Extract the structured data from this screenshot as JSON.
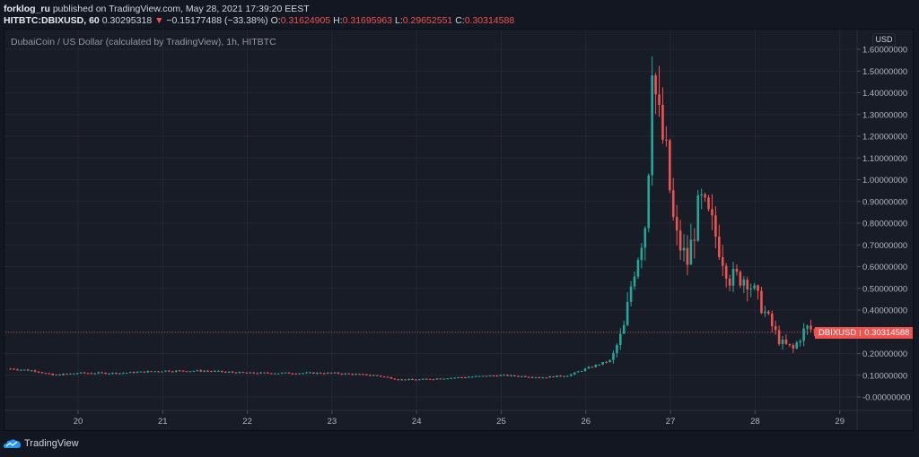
{
  "header": {
    "author": "forklog_ru",
    "published_text": " published on TradingView.com, May 28, 2021 17:39:20 EEST",
    "symbol": "HITBTC:DBIXUSD, 60",
    "last": "0.30295318",
    "change": "−0.15177488 (−33.38%)",
    "change_direction": "down",
    "ohlc": {
      "o_label": "O:",
      "o": "0.31624905",
      "h_label": "H:",
      "h": "0.31695963",
      "l_label": "L:",
      "l": "0.29652551",
      "c_label": "C:",
      "c": "0.30314588"
    }
  },
  "chart_title": "DubaiCoin / US Dollar (calculated by TradingView), 1h, HITBTC",
  "price_scale": {
    "currency": "USD",
    "labels": [
      "1.60000000",
      "1.50000000",
      "1.40000000",
      "1.30000000",
      "1.20000000",
      "1.10000000",
      "1.00000000",
      "0.90000000",
      "0.80000000",
      "0.70000000",
      "0.60000000",
      "0.50000000",
      "0.40000000",
      "0.30000000",
      "0.20000000",
      "0.10000000",
      "-0.00000000"
    ]
  },
  "price_tag": {
    "symbol": "DBIXUSD",
    "value": "0.30314588"
  },
  "footer": {
    "brand": "TradingView"
  },
  "colors": {
    "up": "#26a69a",
    "down": "#ef5350",
    "background": "#131722",
    "panel": "#181c27",
    "grid": "#232632",
    "text": "#d1d4dc"
  },
  "chart_data": {
    "type": "candlestick",
    "title": "DubaiCoin / US Dollar (calculated by TradingView), 1h, HITBTC",
    "xlabel": "",
    "ylabel": "USD",
    "x_ticks": [
      "20",
      "21",
      "22",
      "23",
      "24",
      "25",
      "26",
      "27",
      "28",
      "29"
    ],
    "ylim": [
      0.0,
      1.6
    ],
    "grid": true,
    "last_price": 0.30314588,
    "series_close_approx": [
      {
        "day": 19.2,
        "close": 0.13
      },
      {
        "day": 19.5,
        "close": 0.12
      },
      {
        "day": 19.7,
        "close": 0.1
      },
      {
        "day": 20.0,
        "close": 0.11
      },
      {
        "day": 20.5,
        "close": 0.11
      },
      {
        "day": 21.0,
        "close": 0.12
      },
      {
        "day": 21.5,
        "close": 0.12
      },
      {
        "day": 22.0,
        "close": 0.11
      },
      {
        "day": 22.5,
        "close": 0.11
      },
      {
        "day": 23.0,
        "close": 0.11
      },
      {
        "day": 23.5,
        "close": 0.1
      },
      {
        "day": 23.8,
        "close": 0.08
      },
      {
        "day": 24.0,
        "close": 0.08
      },
      {
        "day": 24.5,
        "close": 0.09
      },
      {
        "day": 25.0,
        "close": 0.1
      },
      {
        "day": 25.5,
        "close": 0.09
      },
      {
        "day": 25.8,
        "close": 0.1
      },
      {
        "day": 26.0,
        "close": 0.13
      },
      {
        "day": 26.3,
        "close": 0.17
      },
      {
        "day": 26.45,
        "close": 0.32
      },
      {
        "day": 26.55,
        "close": 0.55
      },
      {
        "day": 26.7,
        "close": 0.8
      },
      {
        "day": 26.8,
        "close": 1.48
      },
      {
        "day": 26.85,
        "close": 1.3
      },
      {
        "day": 26.95,
        "close": 1.1
      },
      {
        "day": 27.05,
        "close": 0.75
      },
      {
        "day": 27.2,
        "close": 0.62
      },
      {
        "day": 27.35,
        "close": 0.9
      },
      {
        "day": 27.5,
        "close": 0.78
      },
      {
        "day": 27.7,
        "close": 0.55
      },
      {
        "day": 27.9,
        "close": 0.55
      },
      {
        "day": 28.1,
        "close": 0.4
      },
      {
        "day": 28.3,
        "close": 0.25
      },
      {
        "day": 28.45,
        "close": 0.22
      },
      {
        "day": 28.6,
        "close": 0.32
      },
      {
        "day": 28.7,
        "close": 0.303
      }
    ],
    "peak": {
      "day": 26.8,
      "high": 1.51
    },
    "low_before_rally": 0.07
  }
}
